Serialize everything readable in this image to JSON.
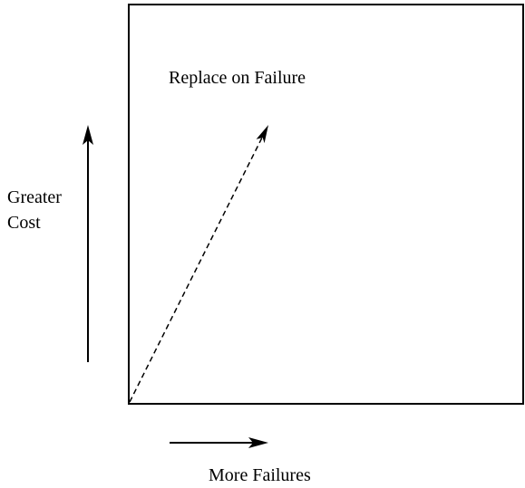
{
  "labels": {
    "region": "Replace on Failure",
    "y_axis": [
      "Greater",
      "Cost"
    ],
    "x_axis": "More Failures"
  }
}
